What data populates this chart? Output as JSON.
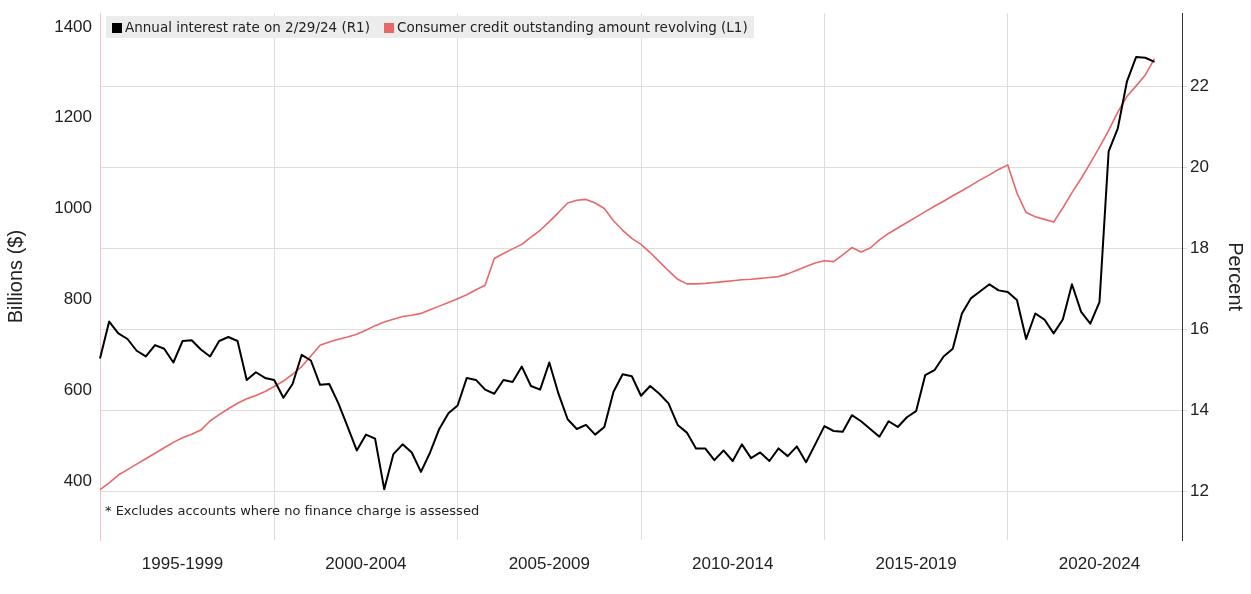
{
  "chart_data": {
    "type": "line",
    "ylabel": "Billions ($)",
    "y2label": "Percent",
    "legend": "top left",
    "grid": true,
    "ylim": [
      270,
      1430
    ],
    "y2lim": [
      10.8,
      23.8
    ],
    "categories": [
      null,
      null,
      null,
      null,
      null,
      null,
      null,
      null,
      null,
      "1995-1999",
      null,
      null,
      null,
      null,
      null,
      null,
      null,
      null,
      null,
      null,
      null,
      null,
      null,
      null,
      null,
      null,
      null,
      null,
      null,
      "2000-2004",
      null,
      null,
      null,
      null,
      null,
      null,
      null,
      null,
      null,
      null,
      null,
      null,
      null,
      null,
      null,
      null,
      null,
      null,
      null,
      "2005-2009",
      null,
      null,
      null,
      null,
      null,
      null,
      null,
      null,
      null,
      null,
      null,
      null,
      null,
      null,
      null,
      null,
      null,
      null,
      null,
      "2010-2014",
      null,
      null,
      null,
      null,
      null,
      null,
      null,
      null,
      null,
      null,
      null,
      null,
      null,
      null,
      null,
      null,
      null,
      null,
      null,
      "2015-2019",
      null,
      null,
      null,
      null,
      null,
      null,
      null,
      null,
      null,
      null,
      null,
      null,
      null,
      null,
      null,
      null,
      null,
      null,
      null,
      "2020-2024",
      null,
      null,
      null,
      null,
      null,
      null,
      null,
      null,
      null
    ],
    "yticks": [
      400,
      600,
      800,
      1000,
      1200,
      1400
    ],
    "y2ticks": [
      12,
      14,
      16,
      18,
      20,
      22
    ],
    "annotations": [
      "* Excludes accounts where no finance charge is assessed"
    ],
    "series": [
      {
        "name": "Annual interest rate on 2/29/24 (R1)",
        "color": "#000000",
        "axis": "y2",
        "values": [
          15.28,
          16.19,
          15.9,
          15.76,
          15.47,
          15.33,
          15.61,
          15.52,
          15.18,
          15.71,
          15.73,
          15.5,
          15.33,
          15.71,
          15.81,
          15.71,
          14.75,
          14.94,
          14.8,
          14.75,
          14.31,
          14.65,
          15.37,
          15.23,
          14.63,
          14.65,
          14.17,
          13.6,
          13.01,
          13.4,
          13.3,
          12.05,
          12.92,
          13.16,
          12.96,
          12.48,
          12.96,
          13.54,
          13.93,
          14.12,
          14.8,
          14.75,
          14.51,
          14.41,
          14.75,
          14.7,
          15.08,
          14.6,
          14.51,
          15.18,
          14.41,
          13.78,
          13.54,
          13.64,
          13.4,
          13.59,
          14.46,
          14.89,
          14.84,
          14.36,
          14.6,
          14.41,
          14.17,
          13.64,
          13.45,
          13.06,
          13.06,
          12.77,
          13.01,
          12.75,
          13.16,
          12.82,
          12.96,
          12.75,
          13.06,
          12.87,
          13.11,
          12.72,
          13.16,
          13.61,
          13.49,
          13.47,
          13.88,
          13.73,
          13.54,
          13.35,
          13.73,
          13.59,
          13.83,
          13.98,
          14.87,
          14.99,
          15.33,
          15.52,
          16.39,
          16.77,
          16.94,
          17.11,
          16.96,
          16.92,
          16.72,
          15.76,
          16.39,
          16.24,
          15.9,
          16.24,
          17.11,
          16.43,
          16.14,
          16.67,
          20.39,
          20.96,
          22.12,
          22.72,
          22.7,
          22.6,
          null,
          null,
          null
        ]
      },
      {
        "name": "Consumer credit outstanding amount revolving (L1)",
        "color": "#e8686a",
        "values": [
          381,
          396,
          413,
          425,
          437,
          449,
          461,
          473,
          485,
          495,
          503,
          512,
          532,
          546,
          559,
          571,
          581,
          588,
          597,
          608,
          620,
          635,
          652,
          675,
          699,
          706,
          712,
          717,
          723,
          732,
          742,
          750,
          756,
          762,
          765,
          769,
          777,
          785,
          793,
          801,
          810,
          821,
          831,
          890,
          901,
          911,
          921,
          937,
          952,
          971,
          991,
          1012,
          1018,
          1020,
          1012,
          1000,
          973,
          952,
          934,
          921,
          903,
          883,
          863,
          844,
          834,
          834,
          835,
          837,
          839,
          841,
          843,
          844,
          846,
          848,
          850,
          856,
          864,
          872,
          880,
          885,
          883,
          898,
          914,
          904,
          913,
          931,
          945,
          957,
          969,
          981,
          993,
          1005,
          1016,
          1028,
          1039,
          1051,
          1063,
          1074,
          1086,
          1096,
          1034,
          991,
          982,
          976,
          970,
          1001,
          1035,
          1066,
          1100,
          1135,
          1172,
          1212,
          1247,
          1270,
          1294,
          1330,
          null,
          null,
          null
        ]
      }
    ]
  }
}
